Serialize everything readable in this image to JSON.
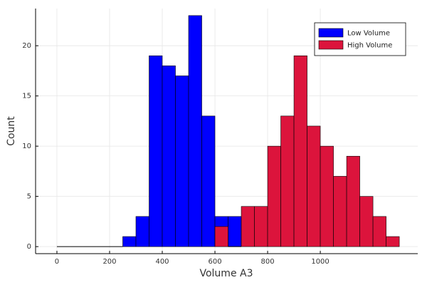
{
  "chart_data": {
    "type": "histogram",
    "x_label": "Volume A3",
    "y_label": "Count",
    "series": [
      {
        "name": "Low Volume",
        "color": "#0000ff",
        "bins": [
          0,
          50,
          100,
          150,
          200,
          250,
          300,
          350,
          400,
          450,
          500,
          550,
          600,
          650,
          700
        ],
        "values": [
          0,
          0,
          0,
          0,
          0,
          1,
          3,
          19,
          18,
          17,
          23,
          13,
          3,
          3
        ]
      },
      {
        "name": "High Volume",
        "color": "#dc143c",
        "bins": [
          600,
          650,
          700,
          750,
          800,
          850,
          900,
          950,
          1000,
          1050,
          1100,
          1150,
          1200,
          1250,
          1300
        ],
        "values": [
          2,
          0,
          4,
          4,
          10,
          13,
          19,
          12,
          10,
          7,
          9,
          5,
          3,
          1
        ]
      }
    ],
    "xlim": [
      -81,
      1370
    ],
    "xticks": [
      0,
      200,
      400,
      600,
      800,
      1000
    ],
    "ylim": [
      -0.7,
      23.7
    ],
    "yticks": [
      0,
      5,
      10,
      15,
      20
    ],
    "grid": true,
    "legend": "top-right"
  }
}
